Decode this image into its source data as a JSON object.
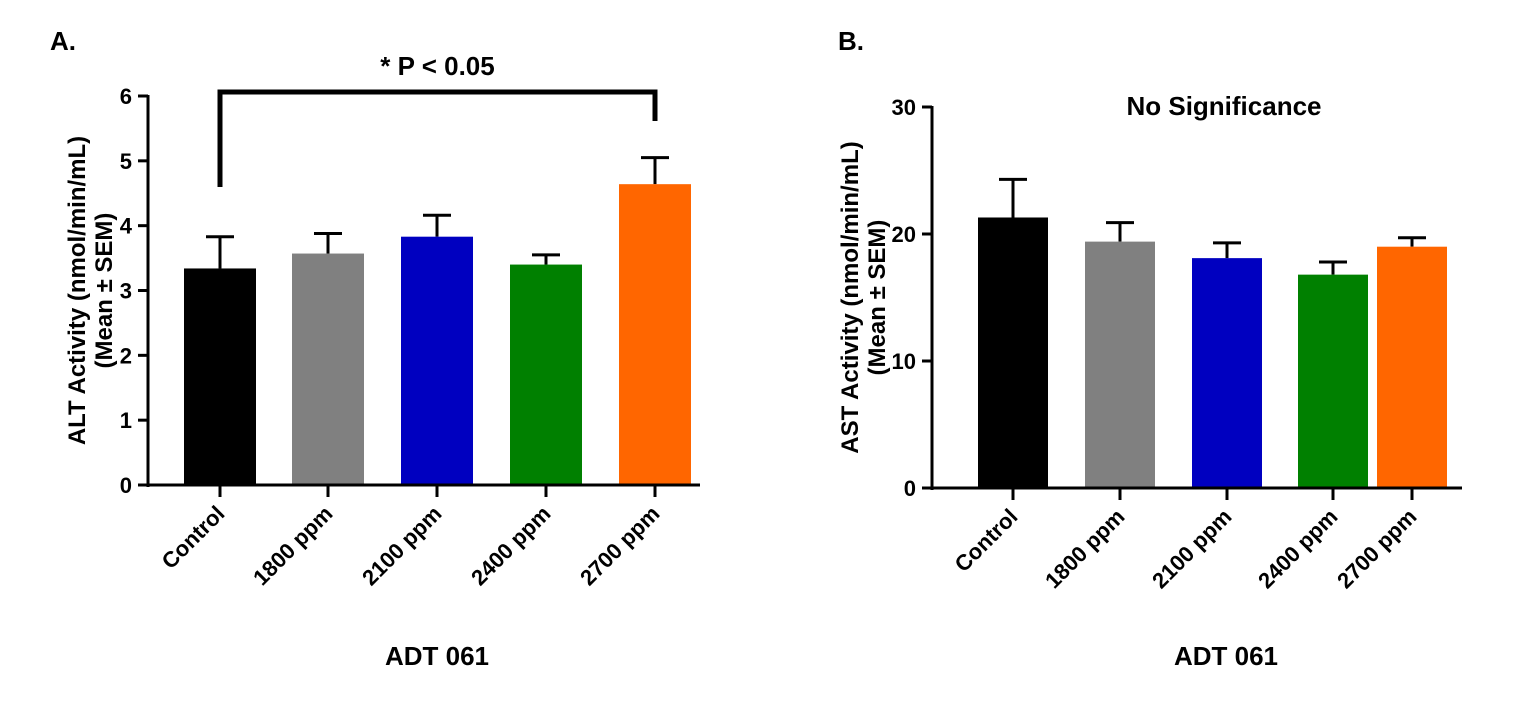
{
  "chart_data": [
    {
      "type": "bar",
      "panel_label": "A.",
      "annotation": "* P < 0.05",
      "annotation_bracket": {
        "from": "Control",
        "to": "2700 ppm"
      },
      "categories": [
        "Control",
        "1800 ppm",
        "2100 ppm",
        "2400 ppm",
        "2700 ppm"
      ],
      "values": [
        3.34,
        3.57,
        3.83,
        3.4,
        4.64
      ],
      "error_upper": [
        3.83,
        3.88,
        4.16,
        3.55,
        5.05
      ],
      "colors": [
        "#000000",
        "#808080",
        "#0000C0",
        "#008000",
        "#FF6600"
      ],
      "xlabel": "ADT 061",
      "ylabel": [
        "ALT Activity  (nmol/min/mL)",
        "(Mean ± SEM)"
      ],
      "ylim": [
        0,
        6
      ],
      "yticks": [
        0,
        1,
        2,
        3,
        4,
        5,
        6
      ],
      "grid": false
    },
    {
      "type": "bar",
      "panel_label": "B.",
      "annotation": "No Significance",
      "categories": [
        "Control",
        "1800 ppm",
        "2100 ppm",
        "2400 ppm",
        "2700 ppm"
      ],
      "values": [
        21.3,
        19.4,
        18.1,
        16.8,
        19.0
      ],
      "error_upper": [
        24.3,
        20.9,
        19.3,
        17.8,
        19.7
      ],
      "colors": [
        "#000000",
        "#808080",
        "#0000C0",
        "#008000",
        "#FF6600"
      ],
      "xlabel": "ADT 061",
      "ylabel": [
        "AST Activity  (nmol/min/mL)",
        "(Mean ± SEM)"
      ],
      "ylim": [
        0,
        30
      ],
      "yticks": [
        0,
        10,
        20,
        30
      ],
      "grid": false
    }
  ]
}
